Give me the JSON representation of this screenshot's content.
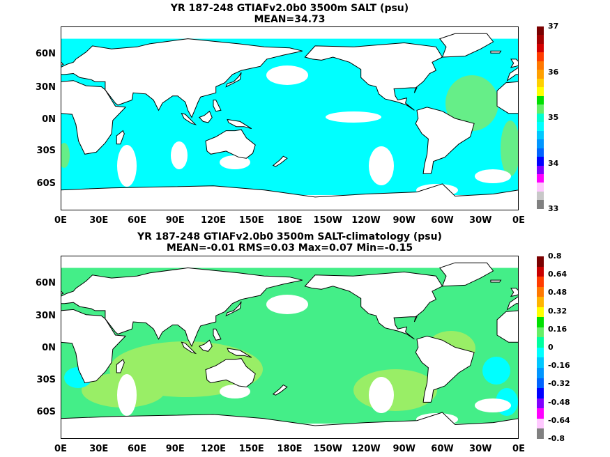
{
  "panels": [
    {
      "title_line1": "YR 187-248 GTIAFv2.0b0 3500m SALT (psu)",
      "title_line2": "MEAN=34.73",
      "colorbar": {
        "labels": [
          "37",
          "36",
          "35",
          "34",
          "33"
        ],
        "colors": [
          "#7a0000",
          "#a40000",
          "#d40000",
          "#ff3c00",
          "#ff7800",
          "#ffa000",
          "#ffd000",
          "#ffff00",
          "#00e000",
          "#66ee66",
          "#00ffd0",
          "#00ffff",
          "#00c8ff",
          "#0096ff",
          "#0064ff",
          "#0000ff",
          "#8000ff",
          "#ff00ff",
          "#ffc8ff",
          "#c8c8c8",
          "#808080"
        ]
      }
    },
    {
      "title_line1": "YR 187-248 GTIAFv2.0b0 3500m SALT-climatology (psu)",
      "title_line2": "MEAN=-0.01   RMS=0.03   Max=0.07   Min=-0.15",
      "colorbar": {
        "labels": [
          "0.8",
          "0.64",
          "0.48",
          "0.32",
          "0.16",
          "0",
          "-0.16",
          "-0.32",
          "-0.48",
          "-0.64",
          "-0.8"
        ],
        "colors": [
          "#7a0000",
          "#c80000",
          "#ff3c00",
          "#ff7800",
          "#ffb400",
          "#ffff00",
          "#00e000",
          "#66ee66",
          "#00ffa0",
          "#00ffff",
          "#00c8ff",
          "#0096ff",
          "#0064ff",
          "#0000ff",
          "#8000ff",
          "#ff00ff",
          "#ffc8ff",
          "#808080"
        ]
      }
    }
  ],
  "axes": {
    "lat_labels": [
      "60N",
      "30N",
      "0N",
      "30S",
      "60S"
    ],
    "lon_labels": [
      "0E",
      "30E",
      "60E",
      "90E",
      "120E",
      "150E",
      "180E",
      "150W",
      "120W",
      "90W",
      "60W",
      "30W",
      "0E"
    ]
  },
  "colors": {
    "top_field": "#00ffff",
    "top_high": "#66ee88",
    "bottom_field": "#44ee88",
    "bottom_light": "#99ee66",
    "bottom_neg": "#00ffff",
    "land": "#ffffff"
  }
}
